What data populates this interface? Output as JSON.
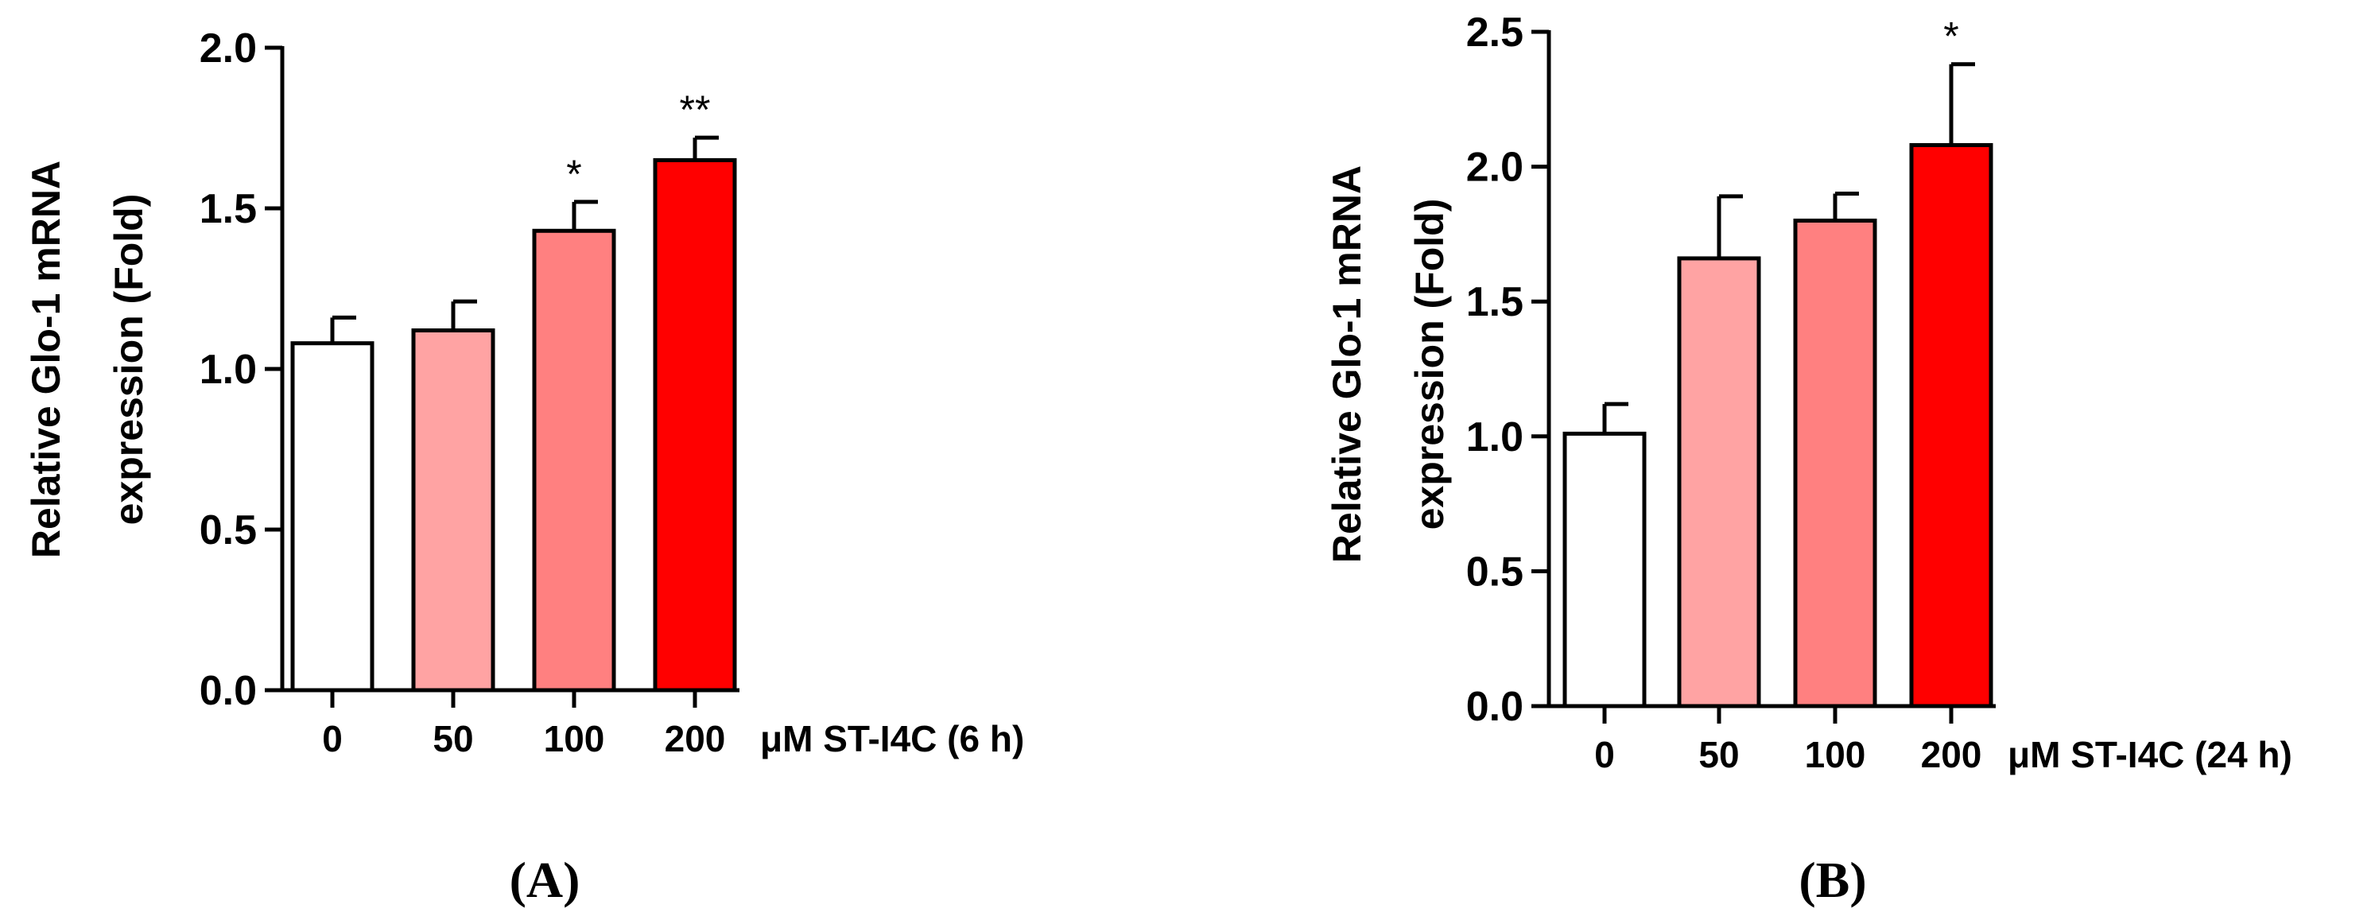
{
  "chart_data": [
    {
      "panel_label": "(A)",
      "panel_letter": "A",
      "type": "bar",
      "categories": [
        "0",
        "50",
        "100",
        "200"
      ],
      "values": [
        1.08,
        1.12,
        1.43,
        1.65
      ],
      "errors": [
        0.08,
        0.09,
        0.09,
        0.07
      ],
      "significance": [
        "",
        "",
        "*",
        "**"
      ],
      "colors": [
        "#ffffff",
        "#ffa3a3",
        "#ff8080",
        "#ff0000"
      ],
      "xlabel": "μM ST-I4C (6 h)",
      "ylabel_line1": "Relative Glo-1 mRNA",
      "ylabel_line2": "expression (Fold)",
      "ylim": [
        0,
        2.0
      ],
      "yticks": [
        "0.0",
        "0.5",
        "1.0",
        "1.5",
        "2.0"
      ],
      "ytick_values": [
        0,
        0.5,
        1.0,
        1.5,
        2.0
      ],
      "grid": false,
      "legend": "none"
    },
    {
      "panel_label": "(B)",
      "panel_letter": "B",
      "type": "bar",
      "categories": [
        "0",
        "50",
        "100",
        "200"
      ],
      "values": [
        1.01,
        1.66,
        1.8,
        2.08
      ],
      "errors": [
        0.11,
        0.23,
        0.1,
        0.3
      ],
      "significance": [
        "",
        "",
        "",
        "*"
      ],
      "colors": [
        "#ffffff",
        "#ffa3a3",
        "#ff8080",
        "#ff0000"
      ],
      "xlabel": "μM ST-I4C (24 h)",
      "ylabel_line1": "Relative Glo-1 mRNA",
      "ylabel_line2": "expression (Fold)",
      "ylim": [
        0,
        2.5
      ],
      "yticks": [
        "0.0",
        "0.5",
        "1.0",
        "1.5",
        "2.0",
        "2.5"
      ],
      "ytick_values": [
        0,
        0.5,
        1.0,
        1.5,
        2.0,
        2.5
      ],
      "grid": false,
      "legend": "none"
    }
  ]
}
